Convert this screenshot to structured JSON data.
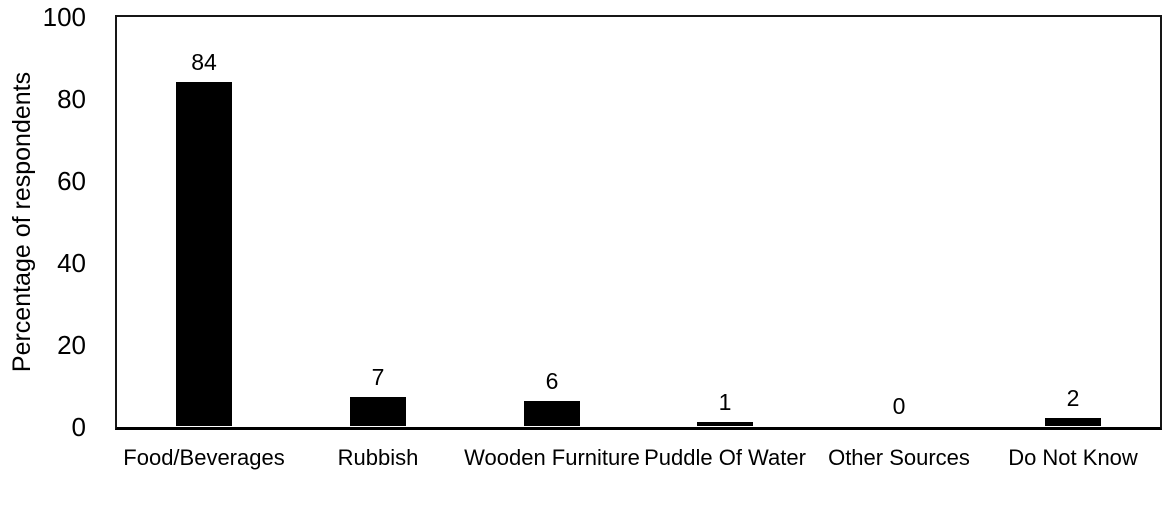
{
  "chart_data": {
    "type": "bar",
    "categories": [
      "Food/Beverages",
      "Rubbish",
      "Wooden Furniture",
      "Puddle Of Water",
      "Other Sources",
      "Do Not Know"
    ],
    "values": [
      84,
      7,
      6,
      1,
      0,
      2
    ],
    "data_labels": [
      "84",
      "7",
      "6",
      "1",
      "0",
      "2"
    ],
    "title": "",
    "xlabel": "",
    "ylabel": "Percentage of respondents",
    "ylim": [
      0,
      100
    ],
    "yticks": [
      0,
      20,
      40,
      60,
      80,
      100
    ],
    "legend_position": "none",
    "grid": "off",
    "bar_color": "#000000",
    "plot_border_color": "#161616",
    "axis_line_color": "#000000",
    "text_color": "#000000",
    "background_color": "#ffffff"
  }
}
